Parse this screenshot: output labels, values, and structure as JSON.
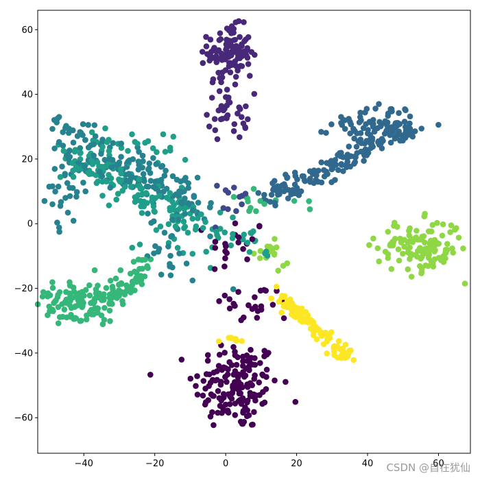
{
  "chart_data": {
    "type": "scatter",
    "title": "",
    "xlabel": "",
    "ylabel": "",
    "xlim": [
      -53,
      69
    ],
    "ylim": [
      -71,
      66
    ],
    "x_ticks": [
      -40,
      -20,
      0,
      20,
      40,
      60
    ],
    "y_ticks": [
      -60,
      -40,
      -20,
      0,
      20,
      40,
      60
    ],
    "x_tick_labels": [
      "−40",
      "−20",
      "0",
      "20",
      "40",
      "60"
    ],
    "y_tick_labels": [
      "−60",
      "−40",
      "−20",
      "0",
      "20",
      "40",
      "60"
    ],
    "grid": false,
    "legend": "none",
    "colormap": "viridis",
    "clusters": [
      {
        "class": 0,
        "color": "#440154",
        "shape": "blob",
        "n": 160,
        "center": [
          3,
          -50
        ],
        "spread": [
          6,
          7
        ]
      },
      {
        "class": 0,
        "color": "#440154",
        "shape": "blob",
        "n": 25,
        "center": [
          8,
          -25
        ],
        "spread": [
          6,
          3
        ]
      },
      {
        "class": 0,
        "color": "#440154",
        "shape": "blob",
        "n": 20,
        "center": [
          3,
          -7
        ],
        "spread": [
          4,
          5
        ]
      },
      {
        "class": 1,
        "color": "#482878",
        "shape": "blob",
        "n": 110,
        "center": [
          1,
          53
        ],
        "spread": [
          3,
          4
        ]
      },
      {
        "class": 1,
        "color": "#482878",
        "shape": "blob",
        "n": 40,
        "center": [
          1,
          36
        ],
        "spread": [
          3,
          5
        ]
      },
      {
        "class": 2,
        "color": "#3e4989",
        "shape": "blob",
        "n": 12,
        "center": [
          2,
          6
        ],
        "spread": [
          3,
          4
        ]
      },
      {
        "class": 3,
        "color": "#31688e",
        "shape": "line",
        "n": 160,
        "from": [
          12,
          8
        ],
        "to": [
          52,
          30
        ],
        "width": 3
      },
      {
        "class": 3,
        "color": "#31688e",
        "shape": "blob",
        "n": 70,
        "center": [
          42,
          31
        ],
        "spread": [
          6,
          3
        ]
      },
      {
        "class": 4,
        "color": "#26828e",
        "shape": "line",
        "n": 80,
        "from": [
          -48,
          30
        ],
        "to": [
          -10,
          10
        ],
        "width": 4
      },
      {
        "class": 4,
        "color": "#26828e",
        "shape": "line",
        "n": 90,
        "from": [
          -45,
          22
        ],
        "to": [
          -3,
          3
        ],
        "width": 4
      },
      {
        "class": 4,
        "color": "#26828e",
        "shape": "blob",
        "n": 30,
        "center": [
          -45,
          10
        ],
        "spread": [
          3,
          6
        ]
      },
      {
        "class": 4,
        "color": "#26828e",
        "shape": "blob",
        "n": 25,
        "center": [
          -15,
          -8
        ],
        "spread": [
          5,
          5
        ]
      },
      {
        "class": 5,
        "color": "#1f9e89",
        "shape": "line",
        "n": 120,
        "from": [
          -45,
          20
        ],
        "to": [
          -8,
          2
        ],
        "width": 4
      },
      {
        "class": 5,
        "color": "#1f9e89",
        "shape": "blob",
        "n": 40,
        "center": [
          -28,
          23
        ],
        "spread": [
          8,
          4
        ]
      },
      {
        "class": 5,
        "color": "#1f9e89",
        "shape": "blob",
        "n": 45,
        "center": [
          -5,
          -3
        ],
        "spread": [
          10,
          4
        ]
      },
      {
        "class": 6,
        "color": "#35b779",
        "shape": "blob",
        "n": 110,
        "center": [
          -42,
          -24
        ],
        "spread": [
          6,
          3
        ]
      },
      {
        "class": 6,
        "color": "#35b779",
        "shape": "line",
        "n": 70,
        "from": [
          -38,
          -28
        ],
        "to": [
          -20,
          -12
        ],
        "width": 3
      },
      {
        "class": 6,
        "color": "#35b779",
        "shape": "blob",
        "n": 15,
        "center": [
          10,
          7
        ],
        "spread": [
          6,
          2
        ]
      },
      {
        "class": 7,
        "color": "#8fd744",
        "shape": "blob",
        "n": 130,
        "center": [
          55,
          -7
        ],
        "spread": [
          6,
          4
        ]
      },
      {
        "class": 7,
        "color": "#8fd744",
        "shape": "blob",
        "n": 15,
        "center": [
          12,
          -10
        ],
        "spread": [
          3,
          2
        ]
      },
      {
        "class": 8,
        "color": "#fde725",
        "shape": "line",
        "n": 110,
        "from": [
          15,
          -22
        ],
        "to": [
          35,
          -42
        ],
        "width": 2
      },
      {
        "class": 8,
        "color": "#fde725",
        "shape": "blob",
        "n": 8,
        "center": [
          3,
          -36
        ],
        "spread": [
          2,
          1
        ]
      }
    ]
  },
  "watermark": "CSDN @自在犹仙"
}
